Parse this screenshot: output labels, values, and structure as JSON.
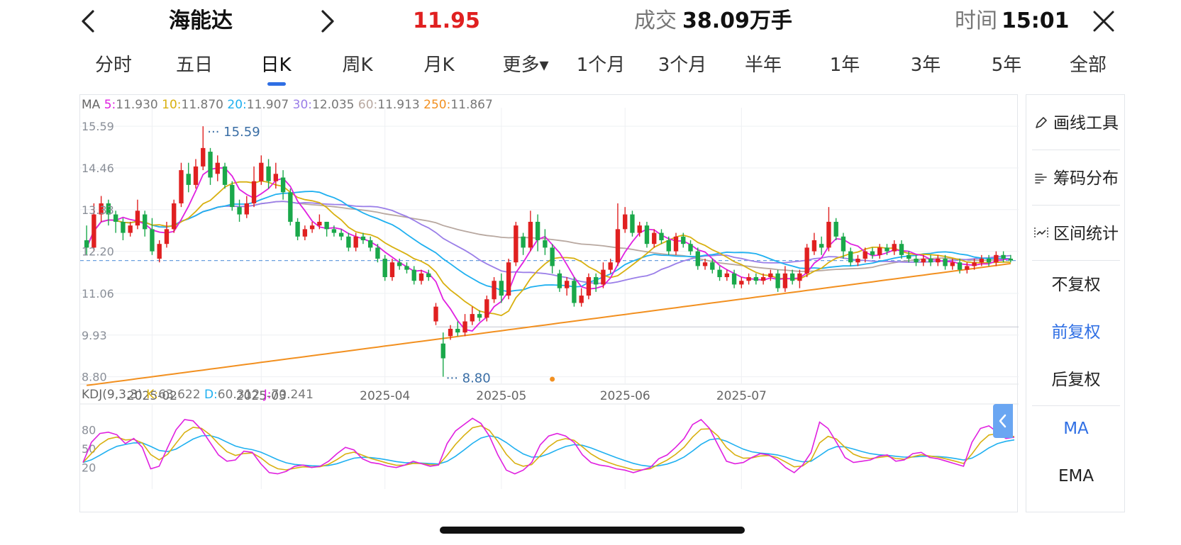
{
  "header": {
    "stock_name": "海能达",
    "price": "11.95",
    "volume_label": "成交",
    "volume_value": "38.09万手",
    "time_label": "时间",
    "time_value": "15:01"
  },
  "tabs": [
    "分时",
    "五日",
    "日K",
    "周K",
    "月K",
    "更多▾",
    "1个月",
    "3个月",
    "半年",
    "1年",
    "3年",
    "5年",
    "全部"
  ],
  "active_tab": "日K",
  "sidebar": {
    "tools": [
      "画线工具",
      "筹码分布",
      "区间统计"
    ],
    "adjust": [
      "不复权",
      "前复权",
      "后复权"
    ],
    "selected_adjust": "前复权",
    "indicators": [
      "MA",
      "EMA"
    ],
    "selected_indicator": "MA"
  },
  "colors": {
    "up": "#e02020",
    "down": "#1aa84a",
    "accent": "#2f6fe4",
    "ma5": "#e020e0",
    "ma10": "#d8b010",
    "ma20": "#1fb0f0",
    "ma30": "#9a7ee8",
    "ma60": "#b8a8a0",
    "ma250": "#f29020",
    "kdj_k": "#d8b010",
    "kdj_d": "#1fb0f0",
    "kdj_j": "#e020e0"
  },
  "chart_data": {
    "type": "candlestick",
    "ma_legend": {
      "label": "MA",
      "items": [
        {
          "key": "5",
          "value": "11.930"
        },
        {
          "key": "10",
          "value": "11.870"
        },
        {
          "key": "20",
          "value": "11.907"
        },
        {
          "key": "30",
          "value": "12.035"
        },
        {
          "key": "60",
          "value": "11.913"
        },
        {
          "key": "250",
          "value": "11.867"
        }
      ]
    },
    "y_ticks": [
      "15.59",
      "14.46",
      "13.33",
      "12.20",
      "11.06",
      "9.93",
      "8.80"
    ],
    "ylim": [
      8.6,
      15.9
    ],
    "x_ticks": [
      "2025-02",
      "2025-03",
      "2025-04",
      "2025-05",
      "2025-06",
      "2025-07"
    ],
    "x_tick_index": [
      9,
      24,
      41,
      57,
      74,
      90
    ],
    "max_marker": "15.59",
    "min_marker": "8.80",
    "current_price": 11.95,
    "reference_level": 10.15,
    "candles": [
      [
        12.5,
        12.3,
        12.9,
        12.1
      ],
      [
        12.3,
        13.2,
        13.5,
        12.2
      ],
      [
        13.2,
        13.5,
        13.7,
        13.0
      ],
      [
        13.5,
        13.2,
        13.6,
        12.9
      ],
      [
        13.2,
        13.0,
        13.3,
        12.7
      ],
      [
        13.0,
        12.7,
        13.1,
        12.5
      ],
      [
        12.7,
        12.9,
        13.0,
        12.6
      ],
      [
        12.9,
        13.3,
        13.6,
        12.8
      ],
      [
        13.2,
        12.8,
        13.3,
        12.6
      ],
      [
        12.8,
        12.2,
        13.1,
        12.1
      ],
      [
        12.0,
        12.4,
        12.5,
        11.9
      ],
      [
        12.4,
        12.8,
        13.0,
        12.3
      ],
      [
        12.8,
        13.5,
        13.6,
        12.7
      ],
      [
        13.5,
        14.4,
        14.6,
        13.4
      ],
      [
        14.3,
        14.0,
        14.6,
        13.8
      ],
      [
        14.0,
        14.5,
        14.7,
        13.9
      ],
      [
        14.5,
        15.0,
        15.59,
        14.4
      ],
      [
        14.9,
        14.2,
        15.0,
        14.0
      ],
      [
        14.3,
        14.6,
        14.8,
        14.1
      ],
      [
        14.5,
        14.0,
        14.6,
        13.9
      ],
      [
        14.0,
        13.4,
        14.1,
        13.3
      ],
      [
        13.4,
        13.2,
        13.6,
        13.0
      ],
      [
        13.2,
        13.5,
        13.7,
        13.1
      ],
      [
        13.5,
        14.1,
        14.5,
        13.4
      ],
      [
        14.1,
        14.6,
        14.8,
        14.0
      ],
      [
        14.5,
        14.1,
        14.7,
        13.9
      ],
      [
        14.1,
        14.3,
        14.6,
        13.9
      ],
      [
        14.2,
        13.8,
        14.4,
        13.6
      ],
      [
        13.8,
        13.0,
        13.9,
        12.9
      ],
      [
        13.0,
        12.6,
        13.1,
        12.5
      ],
      [
        12.6,
        12.8,
        12.9,
        12.5
      ],
      [
        12.8,
        12.9,
        13.0,
        12.7
      ],
      [
        12.9,
        13.0,
        13.2,
        12.8
      ],
      [
        13.0,
        12.8,
        13.0,
        12.6
      ],
      [
        12.8,
        12.7,
        12.9,
        12.6
      ],
      [
        12.7,
        12.6,
        12.8,
        12.5
      ],
      [
        12.6,
        12.3,
        12.7,
        12.2
      ],
      [
        12.3,
        12.6,
        12.7,
        12.2
      ],
      [
        12.6,
        12.5,
        12.7,
        12.4
      ],
      [
        12.5,
        12.3,
        12.6,
        12.2
      ],
      [
        12.3,
        12.0,
        12.4,
        11.9
      ],
      [
        12.0,
        11.5,
        12.1,
        11.4
      ],
      [
        11.5,
        11.9,
        12.0,
        11.4
      ],
      [
        11.9,
        11.8,
        12.0,
        11.7
      ],
      [
        11.8,
        11.7,
        11.9,
        11.6
      ],
      [
        11.7,
        11.4,
        11.8,
        11.3
      ],
      [
        11.4,
        11.6,
        11.7,
        11.3
      ],
      [
        11.6,
        11.5,
        11.7,
        11.4
      ],
      [
        10.3,
        10.7,
        10.8,
        10.2
      ],
      [
        9.7,
        9.3,
        10.0,
        8.8
      ],
      [
        9.9,
        10.1,
        10.2,
        9.8
      ],
      [
        10.1,
        10.0,
        10.3,
        9.9
      ],
      [
        10.0,
        10.3,
        10.5,
        9.9
      ],
      [
        10.3,
        10.5,
        10.7,
        10.2
      ],
      [
        10.5,
        10.4,
        10.6,
        10.3
      ],
      [
        10.4,
        10.9,
        11.0,
        10.3
      ],
      [
        10.9,
        11.4,
        11.5,
        10.8
      ],
      [
        11.4,
        11.0,
        11.6,
        10.8
      ],
      [
        11.0,
        11.9,
        12.0,
        10.9
      ],
      [
        11.9,
        12.9,
        13.0,
        11.8
      ],
      [
        12.6,
        12.3,
        12.7,
        12.1
      ],
      [
        12.3,
        13.0,
        13.3,
        12.2
      ],
      [
        13.0,
        12.5,
        13.2,
        12.2
      ],
      [
        12.5,
        12.3,
        12.8,
        12.1
      ],
      [
        12.3,
        11.8,
        12.4,
        11.6
      ],
      [
        11.6,
        11.2,
        11.7,
        11.1
      ],
      [
        11.2,
        11.4,
        11.5,
        11.0
      ],
      [
        11.4,
        10.8,
        11.5,
        10.7
      ],
      [
        10.8,
        11.0,
        11.2,
        10.7
      ],
      [
        11.0,
        11.5,
        11.6,
        10.9
      ],
      [
        11.5,
        11.3,
        11.6,
        11.1
      ],
      [
        11.3,
        11.7,
        11.9,
        11.2
      ],
      [
        11.7,
        11.9,
        12.0,
        11.6
      ],
      [
        11.9,
        12.8,
        13.5,
        11.8
      ],
      [
        12.8,
        13.2,
        13.4,
        12.7
      ],
      [
        13.2,
        12.7,
        13.3,
        12.6
      ],
      [
        12.7,
        12.9,
        13.0,
        12.6
      ],
      [
        12.9,
        12.4,
        13.0,
        12.3
      ],
      [
        12.4,
        12.7,
        12.8,
        12.3
      ],
      [
        12.7,
        12.5,
        12.8,
        12.4
      ],
      [
        12.5,
        12.2,
        12.6,
        12.1
      ],
      [
        12.2,
        12.6,
        12.7,
        12.1
      ],
      [
        12.6,
        12.4,
        12.7,
        12.3
      ],
      [
        12.4,
        12.2,
        12.5,
        12.1
      ],
      [
        12.2,
        11.8,
        12.3,
        11.7
      ],
      [
        11.8,
        11.9,
        12.0,
        11.7
      ],
      [
        11.9,
        11.7,
        12.0,
        11.6
      ],
      [
        11.7,
        11.5,
        11.8,
        11.4
      ],
      [
        11.5,
        11.6,
        11.7,
        11.4
      ],
      [
        11.6,
        11.3,
        11.7,
        11.2
      ],
      [
        11.3,
        11.4,
        11.5,
        11.2
      ],
      [
        11.4,
        11.5,
        11.6,
        11.3
      ],
      [
        11.5,
        11.4,
        11.6,
        11.3
      ],
      [
        11.4,
        11.5,
        11.6,
        11.3
      ],
      [
        11.5,
        11.6,
        11.7,
        11.4
      ],
      [
        11.6,
        11.2,
        11.7,
        11.1
      ],
      [
        11.2,
        11.6,
        11.8,
        11.1
      ],
      [
        11.6,
        11.4,
        11.7,
        11.3
      ],
      [
        11.4,
        11.6,
        11.7,
        11.2
      ],
      [
        11.6,
        12.3,
        12.4,
        11.5
      ],
      [
        12.2,
        12.5,
        12.7,
        12.1
      ],
      [
        12.4,
        12.3,
        12.6,
        12.1
      ],
      [
        12.3,
        13.0,
        13.4,
        12.2
      ],
      [
        13.0,
        12.6,
        13.1,
        12.5
      ],
      [
        12.6,
        12.2,
        12.7,
        12.0
      ],
      [
        12.2,
        11.9,
        12.3,
        11.8
      ],
      [
        11.9,
        12.0,
        12.1,
        11.8
      ],
      [
        12.0,
        12.2,
        12.3,
        11.9
      ],
      [
        12.2,
        12.1,
        12.3,
        12.0
      ],
      [
        12.1,
        12.3,
        12.4,
        12.0
      ],
      [
        12.3,
        12.2,
        12.4,
        12.1
      ],
      [
        12.2,
        12.4,
        12.5,
        12.1
      ],
      [
        12.4,
        12.1,
        12.5,
        12.0
      ],
      [
        12.1,
        12.0,
        12.2,
        11.9
      ],
      [
        12.0,
        11.9,
        12.1,
        11.8
      ],
      [
        11.9,
        12.0,
        12.1,
        11.8
      ],
      [
        12.0,
        11.9,
        12.1,
        11.8
      ],
      [
        11.9,
        12.0,
        12.1,
        11.8
      ],
      [
        12.0,
        11.8,
        12.1,
        11.7
      ],
      [
        11.8,
        11.9,
        12.0,
        11.7
      ],
      [
        11.9,
        11.7,
        12.0,
        11.6
      ],
      [
        11.7,
        11.8,
        11.9,
        11.6
      ],
      [
        11.8,
        11.9,
        12.0,
        11.7
      ],
      [
        11.9,
        12.0,
        12.1,
        11.8
      ],
      [
        12.0,
        11.9,
        12.1,
        11.8
      ],
      [
        11.9,
        12.1,
        12.2,
        11.8
      ],
      [
        12.1,
        12.0,
        12.2,
        11.9
      ],
      [
        12.0,
        11.95,
        12.1,
        11.9
      ]
    ],
    "kdj_legend": {
      "label": "KDJ(9,3,3)",
      "items": [
        {
          "key": "K",
          "value": "63.622"
        },
        {
          "key": "D",
          "value": "60.312"
        },
        {
          "key": "J",
          "value": "70.241"
        }
      ]
    },
    "kdj_y_ticks": [
      "80",
      "50",
      "20"
    ],
    "kdj_ylim": [
      -5,
      105
    ],
    "kdj_j": [
      28,
      60,
      74,
      76,
      72,
      58,
      66,
      52,
      18,
      22,
      52,
      80,
      96,
      94,
      80,
      60,
      40,
      30,
      32,
      46,
      44,
      26,
      12,
      10,
      14,
      22,
      24,
      20,
      22,
      30,
      42,
      52,
      48,
      34,
      28,
      26,
      22,
      20,
      24,
      30,
      26,
      22,
      24,
      58,
      78,
      88,
      98,
      90,
      70,
      40,
      16,
      10,
      16,
      28,
      56,
      70,
      74,
      70,
      60,
      40,
      28,
      24,
      22,
      18,
      16,
      12,
      16,
      20,
      34,
      40,
      52,
      66,
      88,
      96,
      82,
      56,
      30,
      26,
      28,
      36,
      42,
      40,
      32,
      20,
      12,
      24,
      44,
      92,
      82,
      60,
      36,
      28,
      30,
      32,
      38,
      40,
      30,
      32,
      42,
      44,
      36,
      34,
      30,
      26,
      22,
      60,
      82,
      86,
      76,
      66,
      68
    ]
  }
}
